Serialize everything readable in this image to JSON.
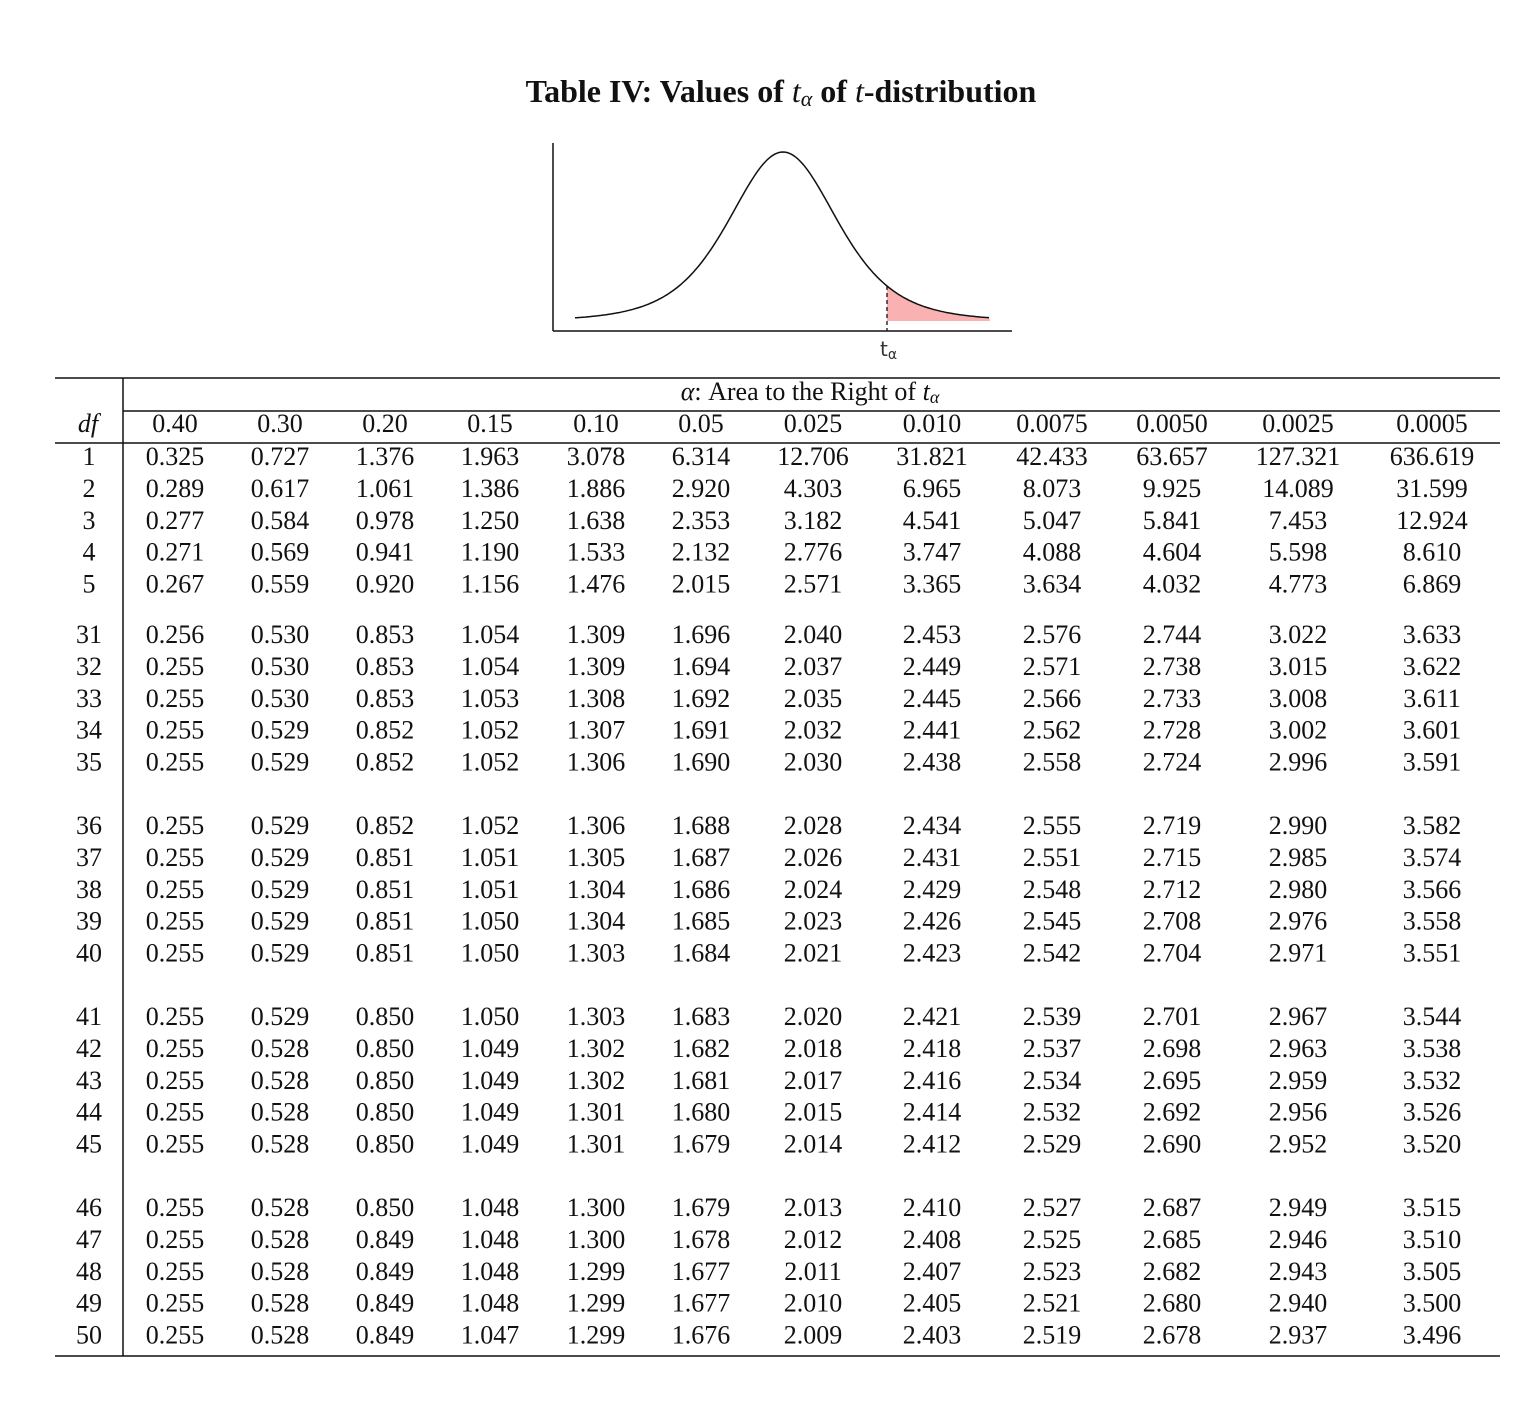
{
  "header": {
    "title_parts": [
      "Table IV: Values of ",
      "t",
      "α",
      " of ",
      "t",
      "-distribution"
    ]
  },
  "figure": {
    "label_parts": [
      "t",
      "α"
    ]
  },
  "table": {
    "corner": "df",
    "group_header_parts": [
      "α",
      ": Area to the Right of ",
      "t",
      "α"
    ],
    "columns": [
      "0.40",
      "0.30",
      "0.20",
      "0.15",
      "0.10",
      "0.05",
      "0.025",
      "0.010",
      "0.0075",
      "0.0050",
      "0.0025",
      "0.0005"
    ],
    "groups": [
      {
        "rows": [
          {
            "df": "1",
            "values": [
              "0.325",
              "0.727",
              "1.376",
              "1.963",
              "3.078",
              "6.314",
              "12.706",
              "31.821",
              "42.433",
              "63.657",
              "127.321",
              "636.619"
            ]
          },
          {
            "df": "2",
            "values": [
              "0.289",
              "0.617",
              "1.061",
              "1.386",
              "1.886",
              "2.920",
              "4.303",
              "6.965",
              "8.073",
              "9.925",
              "14.089",
              "31.599"
            ]
          },
          {
            "df": "3",
            "values": [
              "0.277",
              "0.584",
              "0.978",
              "1.250",
              "1.638",
              "2.353",
              "3.182",
              "4.541",
              "5.047",
              "5.841",
              "7.453",
              "12.924"
            ]
          },
          {
            "df": "4",
            "values": [
              "0.271",
              "0.569",
              "0.941",
              "1.190",
              "1.533",
              "2.132",
              "2.776",
              "3.747",
              "4.088",
              "4.604",
              "5.598",
              "8.610"
            ]
          },
          {
            "df": "5",
            "values": [
              "0.267",
              "0.559",
              "0.920",
              "1.156",
              "1.476",
              "2.015",
              "2.571",
              "3.365",
              "3.634",
              "4.032",
              "4.773",
              "6.869"
            ]
          }
        ]
      },
      {
        "rows": [
          {
            "df": "31",
            "values": [
              "0.256",
              "0.530",
              "0.853",
              "1.054",
              "1.309",
              "1.696",
              "2.040",
              "2.453",
              "2.576",
              "2.744",
              "3.022",
              "3.633"
            ]
          },
          {
            "df": "32",
            "values": [
              "0.255",
              "0.530",
              "0.853",
              "1.054",
              "1.309",
              "1.694",
              "2.037",
              "2.449",
              "2.571",
              "2.738",
              "3.015",
              "3.622"
            ]
          },
          {
            "df": "33",
            "values": [
              "0.255",
              "0.530",
              "0.853",
              "1.053",
              "1.308",
              "1.692",
              "2.035",
              "2.445",
              "2.566",
              "2.733",
              "3.008",
              "3.611"
            ]
          },
          {
            "df": "34",
            "values": [
              "0.255",
              "0.529",
              "0.852",
              "1.052",
              "1.307",
              "1.691",
              "2.032",
              "2.441",
              "2.562",
              "2.728",
              "3.002",
              "3.601"
            ]
          },
          {
            "df": "35",
            "values": [
              "0.255",
              "0.529",
              "0.852",
              "1.052",
              "1.306",
              "1.690",
              "2.030",
              "2.438",
              "2.558",
              "2.724",
              "2.996",
              "3.591"
            ]
          }
        ]
      },
      {
        "rows": [
          {
            "df": "36",
            "values": [
              "0.255",
              "0.529",
              "0.852",
              "1.052",
              "1.306",
              "1.688",
              "2.028",
              "2.434",
              "2.555",
              "2.719",
              "2.990",
              "3.582"
            ]
          },
          {
            "df": "37",
            "values": [
              "0.255",
              "0.529",
              "0.851",
              "1.051",
              "1.305",
              "1.687",
              "2.026",
              "2.431",
              "2.551",
              "2.715",
              "2.985",
              "3.574"
            ]
          },
          {
            "df": "38",
            "values": [
              "0.255",
              "0.529",
              "0.851",
              "1.051",
              "1.304",
              "1.686",
              "2.024",
              "2.429",
              "2.548",
              "2.712",
              "2.980",
              "3.566"
            ]
          },
          {
            "df": "39",
            "values": [
              "0.255",
              "0.529",
              "0.851",
              "1.050",
              "1.304",
              "1.685",
              "2.023",
              "2.426",
              "2.545",
              "2.708",
              "2.976",
              "3.558"
            ]
          },
          {
            "df": "40",
            "values": [
              "0.255",
              "0.529",
              "0.851",
              "1.050",
              "1.303",
              "1.684",
              "2.021",
              "2.423",
              "2.542",
              "2.704",
              "2.971",
              "3.551"
            ]
          }
        ]
      },
      {
        "rows": [
          {
            "df": "41",
            "values": [
              "0.255",
              "0.529",
              "0.850",
              "1.050",
              "1.303",
              "1.683",
              "2.020",
              "2.421",
              "2.539",
              "2.701",
              "2.967",
              "3.544"
            ]
          },
          {
            "df": "42",
            "values": [
              "0.255",
              "0.528",
              "0.850",
              "1.049",
              "1.302",
              "1.682",
              "2.018",
              "2.418",
              "2.537",
              "2.698",
              "2.963",
              "3.538"
            ]
          },
          {
            "df": "43",
            "values": [
              "0.255",
              "0.528",
              "0.850",
              "1.049",
              "1.302",
              "1.681",
              "2.017",
              "2.416",
              "2.534",
              "2.695",
              "2.959",
              "3.532"
            ]
          },
          {
            "df": "44",
            "values": [
              "0.255",
              "0.528",
              "0.850",
              "1.049",
              "1.301",
              "1.680",
              "2.015",
              "2.414",
              "2.532",
              "2.692",
              "2.956",
              "3.526"
            ]
          },
          {
            "df": "45",
            "values": [
              "0.255",
              "0.528",
              "0.850",
              "1.049",
              "1.301",
              "1.679",
              "2.014",
              "2.412",
              "2.529",
              "2.690",
              "2.952",
              "3.520"
            ]
          }
        ]
      },
      {
        "rows": [
          {
            "df": "46",
            "values": [
              "0.255",
              "0.528",
              "0.850",
              "1.048",
              "1.300",
              "1.679",
              "2.013",
              "2.410",
              "2.527",
              "2.687",
              "2.949",
              "3.515"
            ]
          },
          {
            "df": "47",
            "values": [
              "0.255",
              "0.528",
              "0.849",
              "1.048",
              "1.300",
              "1.678",
              "2.012",
              "2.408",
              "2.525",
              "2.685",
              "2.946",
              "3.510"
            ]
          },
          {
            "df": "48",
            "values": [
              "0.255",
              "0.528",
              "0.849",
              "1.048",
              "1.299",
              "1.677",
              "2.011",
              "2.407",
              "2.523",
              "2.682",
              "2.943",
              "3.505"
            ]
          },
          {
            "df": "49",
            "values": [
              "0.255",
              "0.528",
              "0.849",
              "1.048",
              "1.299",
              "1.677",
              "2.010",
              "2.405",
              "2.521",
              "2.680",
              "2.940",
              "3.500"
            ]
          },
          {
            "df": "50",
            "values": [
              "0.255",
              "0.528",
              "0.849",
              "1.047",
              "1.299",
              "1.676",
              "2.009",
              "2.403",
              "2.519",
              "2.678",
              "2.937",
              "3.496"
            ]
          }
        ]
      }
    ]
  }
}
